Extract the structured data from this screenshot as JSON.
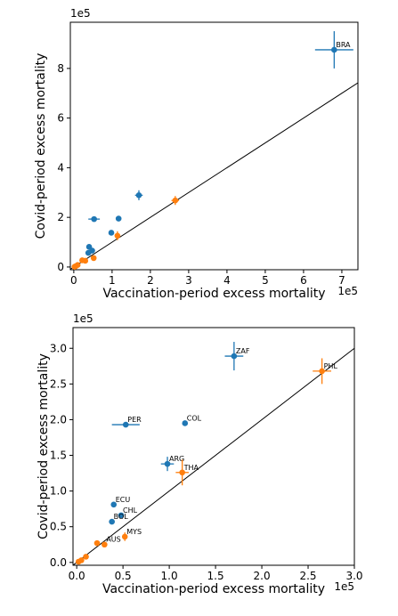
{
  "chart_data": [
    {
      "type": "scatter",
      "x_label": "Vaccination-period excess mortality",
      "y_label": "Covid-period excess mortality",
      "x_offset_label": "1e5",
      "y_offset_label": "1e5",
      "xlim": [
        -0.09,
        7.42
      ],
      "ylim": [
        -0.11,
        9.86
      ],
      "xticks": [
        0,
        1,
        2,
        3,
        4,
        5,
        6,
        7
      ],
      "yticks": [
        0,
        2,
        4,
        6,
        8
      ],
      "diagonal": true,
      "series": [
        {
          "color": "#1f77b4",
          "x": [
            6.8,
            1.7,
            0.53,
            1.17,
            0.98,
            0.4,
            0.48,
            0.38
          ],
          "values": [
            8.75,
            2.89,
            1.93,
            1.95,
            1.38,
            0.81,
            0.66,
            0.57
          ],
          "xerr": [
            0.5,
            0.1,
            0.15,
            0.03,
            0.07,
            0.02,
            0.02,
            0.02
          ],
          "yerr": [
            0.75,
            0.2,
            0.03,
            0.03,
            0.1,
            0.02,
            0.02,
            0.02
          ],
          "point_labels": [
            "BRA",
            null,
            null,
            null,
            null,
            null,
            null,
            null
          ]
        },
        {
          "color": "#ff7f0e",
          "x": [
            2.65,
            1.14,
            0.52,
            0.3,
            0.22,
            0.1,
            0.05,
            0.02
          ],
          "values": [
            2.68,
            1.26,
            0.36,
            0.25,
            0.27,
            0.08,
            0.03,
            0.01
          ],
          "xerr": [
            0.1,
            0.07,
            0.02,
            0.02,
            0.01,
            0.01,
            0.01,
            0.01
          ],
          "yerr": [
            0.18,
            0.18,
            0.06,
            0.03,
            0.01,
            0.01,
            0.01,
            0.01
          ]
        }
      ]
    },
    {
      "type": "scatter",
      "x_label": "Vaccination-period excess mortality",
      "y_label": "Covid-period excess mortality",
      "x_offset_label": "1e5",
      "y_offset_label": "1e5",
      "xlim": [
        -0.04,
        3.0
      ],
      "ylim": [
        -0.04,
        3.29
      ],
      "xticks": [
        {
          "value": 0,
          "label": "0.0"
        },
        {
          "value": 0.5,
          "label": "0.5"
        },
        {
          "value": 1,
          "label": "1.0"
        },
        {
          "value": 1.5,
          "label": "1.5"
        },
        {
          "value": 2,
          "label": "2.0"
        },
        {
          "value": 2.5,
          "label": "2.5"
        },
        {
          "value": 3,
          "label": "3.0"
        }
      ],
      "yticks": [
        {
          "value": 0,
          "label": "0.0"
        },
        {
          "value": 0.5,
          "label": "0.5"
        },
        {
          "value": 1,
          "label": "1.0"
        },
        {
          "value": 1.5,
          "label": "1.5"
        },
        {
          "value": 2,
          "label": "2.0"
        },
        {
          "value": 2.5,
          "label": "2.5"
        },
        {
          "value": 3,
          "label": "3.0"
        }
      ],
      "diagonal": true,
      "series": [
        {
          "color": "#1f77b4",
          "x": [
            1.7,
            0.53,
            1.17,
            0.98,
            0.4,
            0.48,
            0.38
          ],
          "values": [
            2.89,
            1.93,
            1.95,
            1.38,
            0.81,
            0.66,
            0.57
          ],
          "xerr": [
            0.1,
            0.15,
            0.01,
            0.07,
            0.01,
            0.02,
            0.01
          ],
          "yerr": [
            0.2,
            0.03,
            0.02,
            0.1,
            0.02,
            0.03,
            0.02
          ],
          "point_labels": [
            "ZAF",
            "PER",
            "COL",
            "ARG",
            "ECU",
            "CHL",
            "BOL"
          ]
        },
        {
          "color": "#ff7f0e",
          "x": [
            2.65,
            1.14,
            0.52,
            0.3,
            0.22,
            0.1,
            0.05,
            0.02
          ],
          "values": [
            2.68,
            1.26,
            0.36,
            0.25,
            0.27,
            0.08,
            0.03,
            0.01
          ],
          "xerr": [
            0.1,
            0.07,
            0.02,
            0.02,
            0.01,
            0.01,
            0.01,
            0.01
          ],
          "yerr": [
            0.18,
            0.18,
            0.06,
            0.03,
            0.01,
            0.01,
            0.01,
            0.01
          ],
          "point_labels": [
            "PHL",
            "THA",
            "MYS",
            "AUS",
            null,
            null,
            null,
            null
          ]
        }
      ]
    }
  ]
}
